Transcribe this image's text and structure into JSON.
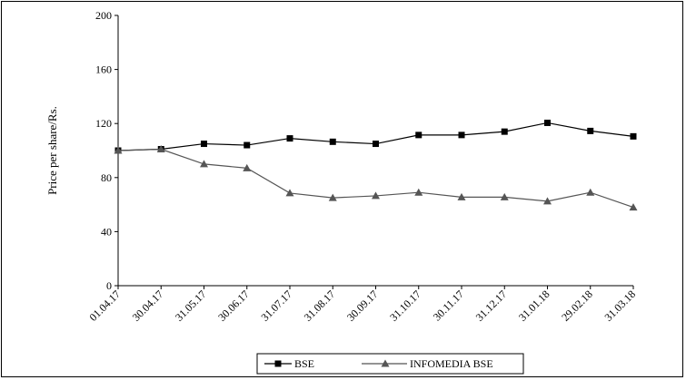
{
  "chart_data": {
    "type": "line",
    "title": "",
    "xlabel": "",
    "ylabel": "Price per share/Rs.",
    "ylim": [
      0,
      200
    ],
    "yticks": [
      0,
      40,
      80,
      120,
      160,
      200
    ],
    "categories": [
      "01.04.17",
      "30.04.17",
      "31.05.17",
      "30.06.17",
      "31.07.17",
      "31.08.17",
      "30.09.17",
      "31.10.17",
      "30.11.17",
      "31.12.17",
      "31.01.18",
      "29.02.18",
      "31.03.18"
    ],
    "series": [
      {
        "name": "BSE",
        "marker": "square",
        "color": "#000000",
        "values": [
          100,
          101,
          105,
          104,
          109,
          106.5,
          105,
          111.5,
          111.5,
          114,
          120.5,
          114.5,
          110.5
        ]
      },
      {
        "name": "INFOMEDIA BSE",
        "marker": "triangle",
        "color": "#555555",
        "values": [
          100,
          101,
          90,
          87,
          68.5,
          65,
          66.5,
          69,
          65.5,
          65.5,
          62.5,
          69,
          58
        ]
      }
    ],
    "grid": false,
    "legend_position": "bottom-center"
  }
}
